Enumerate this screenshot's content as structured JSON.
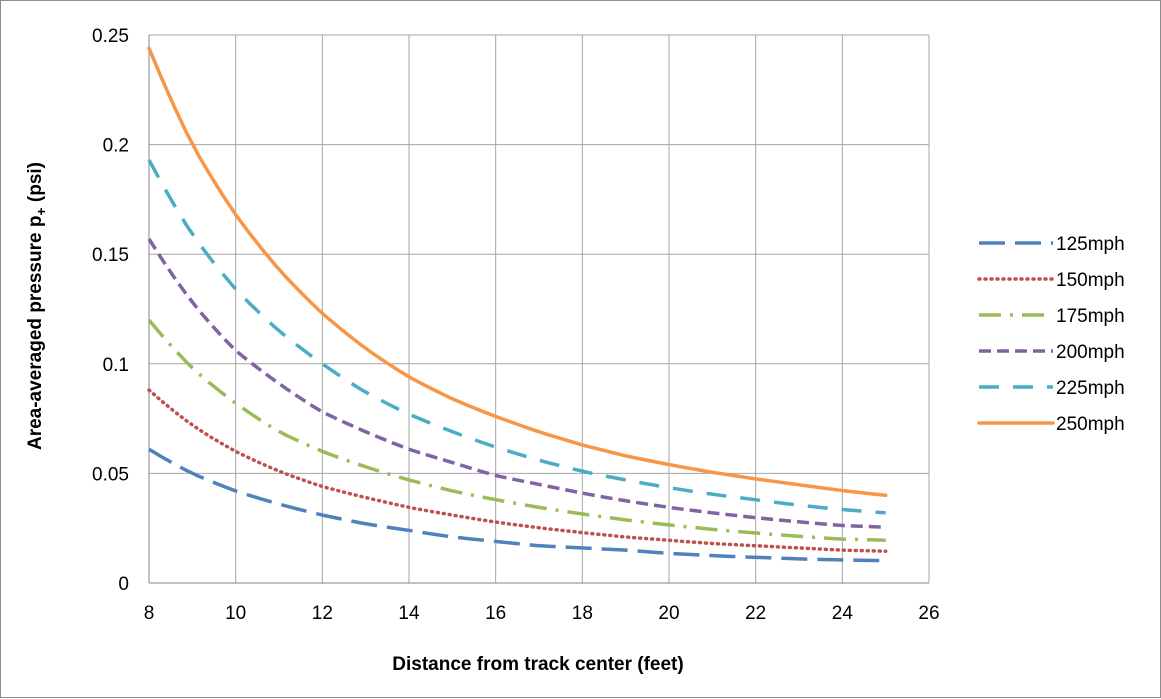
{
  "chart_data": {
    "type": "line",
    "xlabel": "Distance from track center (feet)",
    "ylabel_parts": {
      "main": "Area-averaged pressure p",
      "subscript": "+",
      "unit": " (psi)"
    },
    "xlim": [
      8,
      26
    ],
    "ylim": [
      0,
      0.25
    ],
    "x_ticks": [
      "8",
      "10",
      "12",
      "14",
      "16",
      "18",
      "20",
      "22",
      "24",
      "26"
    ],
    "y_ticks": [
      "0",
      "0.05",
      "0.1",
      "0.15",
      "0.2",
      "0.25"
    ],
    "grid": true,
    "legend_position": "right",
    "x": [
      8,
      9,
      10,
      11,
      12,
      13,
      14,
      15,
      16,
      17,
      18,
      19,
      20,
      21,
      22,
      23,
      24,
      25
    ],
    "series": [
      {
        "name": "125mph",
        "color": "#4f81bd",
        "dash": "long-dash",
        "values": [
          0.061,
          0.05,
          0.042,
          0.036,
          0.031,
          0.027,
          0.024,
          0.021,
          0.019,
          0.017,
          0.016,
          0.015,
          0.0135,
          0.0125,
          0.0117,
          0.011,
          0.0105,
          0.0102
        ]
      },
      {
        "name": "150mph",
        "color": "#c0504d",
        "dash": "dot",
        "values": [
          0.088,
          0.072,
          0.06,
          0.051,
          0.044,
          0.039,
          0.0345,
          0.031,
          0.0278,
          0.0252,
          0.023,
          0.021,
          0.0195,
          0.018,
          0.017,
          0.016,
          0.015,
          0.0145
        ]
      },
      {
        "name": "175mph",
        "color": "#9bbb59",
        "dash": "dash-dot",
        "values": [
          0.12,
          0.098,
          0.082,
          0.069,
          0.06,
          0.053,
          0.047,
          0.042,
          0.038,
          0.0345,
          0.0315,
          0.0288,
          0.0265,
          0.0245,
          0.0228,
          0.0213,
          0.02,
          0.0195
        ]
      },
      {
        "name": "200mph",
        "color": "#8064a2",
        "dash": "short-dash",
        "values": [
          0.157,
          0.128,
          0.106,
          0.091,
          0.078,
          0.069,
          0.061,
          0.055,
          0.049,
          0.045,
          0.041,
          0.0375,
          0.0345,
          0.032,
          0.0298,
          0.0279,
          0.0262,
          0.0255
        ]
      },
      {
        "name": "225mph",
        "color": "#4bacc6",
        "dash": "medium-dash",
        "values": [
          0.193,
          0.159,
          0.134,
          0.115,
          0.1,
          0.087,
          0.077,
          0.069,
          0.062,
          0.056,
          0.051,
          0.047,
          0.0435,
          0.0405,
          0.038,
          0.0355,
          0.0335,
          0.032
        ]
      },
      {
        "name": "250mph",
        "color": "#f79646",
        "dash": "solid",
        "values": [
          0.244,
          0.2,
          0.168,
          0.143,
          0.123,
          0.107,
          0.094,
          0.084,
          0.076,
          0.069,
          0.063,
          0.058,
          0.054,
          0.0505,
          0.0475,
          0.0448,
          0.0422,
          0.04
        ]
      }
    ]
  }
}
